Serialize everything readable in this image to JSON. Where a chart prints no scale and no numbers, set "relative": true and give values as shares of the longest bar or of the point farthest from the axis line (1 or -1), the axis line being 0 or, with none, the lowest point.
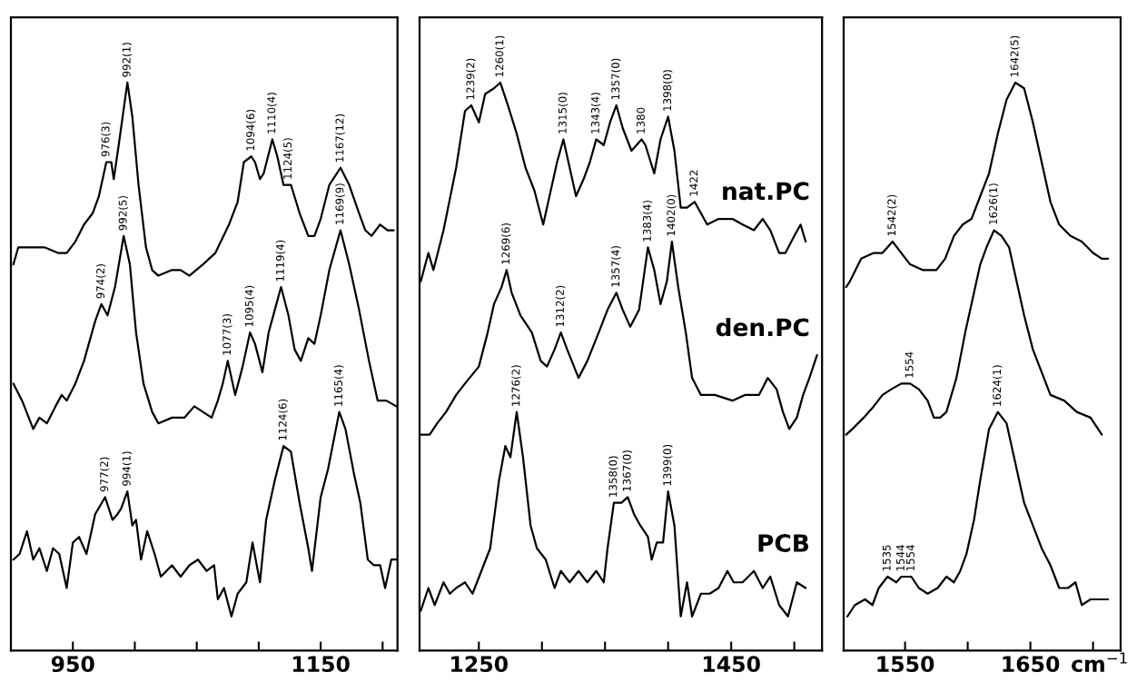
{
  "chart_data": [
    {
      "type": "line",
      "relative": true,
      "tick_labels": "x",
      "xlim": [
        900,
        1212
      ],
      "xticks": [
        950,
        {
          "value": 1000,
          "label": null
        },
        {
          "value": 1050,
          "label": null
        },
        {
          "value": 1100,
          "label": null
        },
        1150,
        {
          "value": 1200,
          "label": null
        }
      ],
      "series": [
        {
          "color": "#000000",
          "x": [
            902,
            906,
            916,
            927,
            938,
            945,
            952,
            959,
            966,
            971,
            977,
            981,
            983,
            987,
            994,
            998,
            1003,
            1009,
            1014,
            1019,
            1030,
            1037,
            1044,
            1055,
            1065,
            1076,
            1083,
            1088,
            1094,
            1097,
            1101,
            1104,
            1111,
            1115,
            1120,
            1126,
            1133,
            1140,
            1145,
            1150,
            1157,
            1166,
            1173,
            1181,
            1186,
            1191,
            1198,
            1204,
            1209
          ],
          "values": [
            0.68,
            0.71,
            0.71,
            0.71,
            0.7,
            0.7,
            0.72,
            0.75,
            0.77,
            0.8,
            0.86,
            0.86,
            0.83,
            0.89,
            1.0,
            0.94,
            0.82,
            0.71,
            0.67,
            0.66,
            0.67,
            0.67,
            0.66,
            0.68,
            0.7,
            0.75,
            0.79,
            0.86,
            0.87,
            0.86,
            0.83,
            0.84,
            0.9,
            0.87,
            0.82,
            0.82,
            0.77,
            0.73,
            0.73,
            0.76,
            0.82,
            0.85,
            0.82,
            0.77,
            0.74,
            0.73,
            0.75,
            0.74,
            0.74
          ]
        },
        {
          "color": "#000000",
          "x": [
            902,
            909,
            918,
            923,
            929,
            936,
            941,
            945,
            952,
            959,
            968,
            973,
            978,
            984,
            991,
            996,
            1001,
            1007,
            1014,
            1019,
            1030,
            1040,
            1048,
            1055,
            1062,
            1067,
            1071,
            1075,
            1081,
            1087,
            1093,
            1097,
            1103,
            1108,
            1113,
            1118,
            1124,
            1129,
            1134,
            1140,
            1145,
            1150,
            1157,
            1166,
            1173,
            1181,
            1189,
            1196,
            1203,
            1211
          ],
          "values": [
            0.47,
            0.44,
            0.39,
            0.41,
            0.4,
            0.43,
            0.45,
            0.44,
            0.47,
            0.51,
            0.58,
            0.61,
            0.59,
            0.64,
            0.73,
            0.68,
            0.56,
            0.47,
            0.42,
            0.4,
            0.41,
            0.41,
            0.43,
            0.42,
            0.41,
            0.44,
            0.47,
            0.51,
            0.45,
            0.5,
            0.56,
            0.54,
            0.49,
            0.56,
            0.6,
            0.64,
            0.59,
            0.53,
            0.51,
            0.55,
            0.54,
            0.59,
            0.67,
            0.74,
            0.68,
            0.6,
            0.51,
            0.44,
            0.44,
            0.43
          ]
        },
        {
          "color": "#000000",
          "x": [
            902,
            907,
            913,
            918,
            923,
            929,
            934,
            939,
            945,
            950,
            955,
            961,
            968,
            976,
            982,
            986,
            989,
            994,
            998,
            1001,
            1005,
            1010,
            1016,
            1021,
            1030,
            1037,
            1044,
            1051,
            1058,
            1064,
            1067,
            1072,
            1078,
            1083,
            1090,
            1095,
            1101,
            1106,
            1113,
            1120,
            1126,
            1133,
            1140,
            1143,
            1150,
            1156,
            1165,
            1170,
            1177,
            1182,
            1188,
            1193,
            1198,
            1202,
            1207,
            1211
          ],
          "values": [
            0.16,
            0.17,
            0.21,
            0.16,
            0.18,
            0.14,
            0.18,
            0.17,
            0.11,
            0.19,
            0.2,
            0.17,
            0.24,
            0.27,
            0.23,
            0.24,
            0.25,
            0.28,
            0.22,
            0.23,
            0.16,
            0.21,
            0.17,
            0.13,
            0.15,
            0.13,
            0.15,
            0.16,
            0.14,
            0.15,
            0.09,
            0.11,
            0.06,
            0.1,
            0.12,
            0.19,
            0.12,
            0.23,
            0.3,
            0.36,
            0.35,
            0.26,
            0.18,
            0.14,
            0.27,
            0.32,
            0.42,
            0.39,
            0.31,
            0.26,
            0.16,
            0.15,
            0.15,
            0.11,
            0.16,
            0.16
          ]
        }
      ],
      "annotations": [
        {
          "text": "976(3)",
          "x": 977,
          "y": 0.86
        },
        {
          "text": "992(1)",
          "x": 994,
          "y": 1.0
        },
        {
          "text": "1094(6)",
          "x": 1094,
          "y": 0.87
        },
        {
          "text": "1110(4)",
          "x": 1111,
          "y": 0.9
        },
        {
          "text": "1124(5)",
          "x": 1124,
          "y": 0.82
        },
        {
          "text": "1167(12)",
          "x": 1166,
          "y": 0.85
        },
        {
          "text": "974(2)",
          "x": 973,
          "y": 0.61
        },
        {
          "text": "992(5)",
          "x": 991,
          "y": 0.73
        },
        {
          "text": "1077(3)",
          "x": 1075,
          "y": 0.51
        },
        {
          "text": "1095(4)",
          "x": 1093,
          "y": 0.56
        },
        {
          "text": "1119(4)",
          "x": 1118,
          "y": 0.64
        },
        {
          "text": "1169(9)",
          "x": 1166,
          "y": 0.74
        },
        {
          "text": "977(2)",
          "x": 976,
          "y": 0.27
        },
        {
          "text": "994(1)",
          "x": 994,
          "y": 0.28
        },
        {
          "text": "1124(6)",
          "x": 1120,
          "y": 0.36
        },
        {
          "text": "1165(4)",
          "x": 1165,
          "y": 0.42
        }
      ]
    },
    {
      "type": "line",
      "relative": true,
      "tick_labels": "x",
      "xlim": [
        1203,
        1522
      ],
      "xticks": [
        1250,
        {
          "value": 1300,
          "label": null
        },
        {
          "value": 1350,
          "label": null
        },
        {
          "value": 1400,
          "label": null
        },
        1450,
        {
          "value": 1500,
          "label": null
        }
      ],
      "series": [
        {
          "name": "nat.PC",
          "color": "#000000",
          "x": [
            1204,
            1210,
            1214,
            1222,
            1232,
            1239,
            1244,
            1250,
            1255,
            1262,
            1267,
            1273,
            1280,
            1287,
            1294,
            1301,
            1306,
            1312,
            1317,
            1322,
            1327,
            1333,
            1338,
            1343,
            1349,
            1354,
            1359,
            1364,
            1371,
            1379,
            1382,
            1389,
            1394,
            1400,
            1405,
            1410,
            1415,
            1421,
            1426,
            1431,
            1440,
            1451,
            1459,
            1468,
            1475,
            1481,
            1488,
            1493,
            1500,
            1505,
            1509
          ],
          "values": [
            0.65,
            0.7,
            0.67,
            0.74,
            0.85,
            0.95,
            0.96,
            0.93,
            0.98,
            0.99,
            1.0,
            0.96,
            0.91,
            0.85,
            0.81,
            0.75,
            0.8,
            0.86,
            0.9,
            0.85,
            0.8,
            0.83,
            0.86,
            0.9,
            0.89,
            0.93,
            0.96,
            0.92,
            0.88,
            0.9,
            0.89,
            0.84,
            0.9,
            0.94,
            0.88,
            0.78,
            0.78,
            0.79,
            0.77,
            0.75,
            0.76,
            0.76,
            0.75,
            0.74,
            0.76,
            0.74,
            0.7,
            0.7,
            0.73,
            0.75,
            0.72
          ]
        },
        {
          "name": "den.PC",
          "color": "#000000",
          "x": [
            1204,
            1211,
            1217,
            1224,
            1232,
            1239,
            1250,
            1257,
            1262,
            1268,
            1272,
            1276,
            1283,
            1292,
            1299,
            1304,
            1310,
            1315,
            1320,
            1329,
            1336,
            1345,
            1352,
            1359,
            1364,
            1370,
            1377,
            1384,
            1389,
            1394,
            1399,
            1403,
            1408,
            1414,
            1419,
            1426,
            1437,
            1451,
            1461,
            1472,
            1479,
            1486,
            1491,
            1496,
            1502,
            1507,
            1512,
            1518
          ],
          "values": [
            0.38,
            0.38,
            0.4,
            0.42,
            0.45,
            0.47,
            0.5,
            0.56,
            0.61,
            0.64,
            0.67,
            0.63,
            0.59,
            0.56,
            0.51,
            0.5,
            0.53,
            0.56,
            0.53,
            0.48,
            0.51,
            0.56,
            0.6,
            0.63,
            0.6,
            0.57,
            0.6,
            0.71,
            0.67,
            0.61,
            0.65,
            0.72,
            0.64,
            0.56,
            0.48,
            0.45,
            0.45,
            0.44,
            0.45,
            0.45,
            0.48,
            0.46,
            0.42,
            0.39,
            0.41,
            0.45,
            0.48,
            0.52
          ]
        },
        {
          "name": "PCB",
          "color": "#000000",
          "x": [
            1204,
            1210,
            1215,
            1222,
            1227,
            1232,
            1239,
            1245,
            1252,
            1259,
            1266,
            1271,
            1275,
            1280,
            1285,
            1291,
            1296,
            1303,
            1310,
            1315,
            1322,
            1329,
            1336,
            1343,
            1349,
            1352,
            1357,
            1363,
            1368,
            1373,
            1378,
            1384,
            1387,
            1391,
            1396,
            1400,
            1405,
            1410,
            1415,
            1419,
            1426,
            1433,
            1440,
            1447,
            1452,
            1459,
            1468,
            1475,
            1481,
            1488,
            1495,
            1502,
            1509
          ],
          "values": [
            0.07,
            0.11,
            0.08,
            0.12,
            0.1,
            0.11,
            0.12,
            0.1,
            0.14,
            0.18,
            0.3,
            0.36,
            0.34,
            0.42,
            0.34,
            0.22,
            0.18,
            0.16,
            0.11,
            0.14,
            0.12,
            0.14,
            0.12,
            0.14,
            0.12,
            0.18,
            0.26,
            0.26,
            0.27,
            0.24,
            0.22,
            0.2,
            0.16,
            0.19,
            0.19,
            0.28,
            0.22,
            0.06,
            0.12,
            0.06,
            0.1,
            0.1,
            0.11,
            0.14,
            0.12,
            0.12,
            0.14,
            0.11,
            0.13,
            0.08,
            0.06,
            0.12,
            0.11
          ]
        }
      ],
      "annotations": [
        {
          "text": "1239(2)",
          "x": 1244,
          "y": 0.96
        },
        {
          "text": "1260(1)",
          "x": 1267,
          "y": 1.0
        },
        {
          "text": "1315(0)",
          "x": 1317,
          "y": 0.9
        },
        {
          "text": "1343(4)",
          "x": 1343,
          "y": 0.9
        },
        {
          "text": "1357(0)",
          "x": 1359,
          "y": 0.96
        },
        {
          "text": "1380",
          "x": 1379,
          "y": 0.9
        },
        {
          "text": "1398(0)",
          "x": 1400,
          "y": 0.94
        },
        {
          "text": "1422",
          "x": 1421,
          "y": 0.79
        },
        {
          "text": "1269(6)",
          "x": 1272,
          "y": 0.67
        },
        {
          "text": "1312(2)",
          "x": 1315,
          "y": 0.56
        },
        {
          "text": "1357(4)",
          "x": 1359,
          "y": 0.63
        },
        {
          "text": "1383(4)",
          "x": 1384,
          "y": 0.71
        },
        {
          "text": "1402(0)",
          "x": 1403,
          "y": 0.72
        },
        {
          "text": "1276(2)",
          "x": 1280,
          "y": 0.42
        },
        {
          "text": "1358(0)",
          "x": 1357,
          "y": 0.26
        },
        {
          "text": "1367(0)",
          "x": 1368,
          "y": 0.27
        },
        {
          "text": "1399(0)",
          "x": 1400,
          "y": 0.28
        }
      ]
    },
    {
      "type": "line",
      "relative": true,
      "tick_labels": "x",
      "xlim": [
        1501,
        1722
      ],
      "xlabel": "cm$^{−1}$",
      "xticks": [
        1550,
        {
          "value": 1600,
          "label": null
        },
        1650,
        {
          "value": 1700,
          "label": null
        }
      ],
      "series": [
        {
          "color": "#000000",
          "x": [
            1503,
            1506,
            1515,
            1525,
            1532,
            1540,
            1547,
            1554,
            1564,
            1575,
            1582,
            1589,
            1596,
            1603,
            1610,
            1617,
            1624,
            1631,
            1638,
            1645,
            1652,
            1659,
            1666,
            1673,
            1682,
            1691,
            1700,
            1707,
            1712
          ],
          "values": [
            0.64,
            0.65,
            0.69,
            0.7,
            0.7,
            0.72,
            0.7,
            0.68,
            0.67,
            0.67,
            0.69,
            0.73,
            0.75,
            0.76,
            0.8,
            0.84,
            0.91,
            0.97,
            1.0,
            0.99,
            0.93,
            0.86,
            0.79,
            0.75,
            0.73,
            0.72,
            0.7,
            0.69,
            0.69
          ]
        },
        {
          "color": "#000000",
          "x": [
            1503,
            1508,
            1517,
            1525,
            1532,
            1539,
            1547,
            1554,
            1561,
            1568,
            1573,
            1578,
            1583,
            1591,
            1598,
            1605,
            1610,
            1615,
            1621,
            1627,
            1633,
            1638,
            1645,
            1652,
            1659,
            1666,
            1677,
            1687,
            1698,
            1707
          ],
          "values": [
            0.38,
            0.39,
            0.41,
            0.43,
            0.45,
            0.46,
            0.47,
            0.47,
            0.46,
            0.44,
            0.41,
            0.41,
            0.42,
            0.48,
            0.56,
            0.63,
            0.68,
            0.71,
            0.74,
            0.73,
            0.71,
            0.66,
            0.59,
            0.53,
            0.49,
            0.45,
            0.44,
            0.42,
            0.41,
            0.38
          ]
        },
        {
          "color": "#000000",
          "x": [
            1504,
            1510,
            1518,
            1524,
            1529,
            1536,
            1543,
            1547,
            1552,
            1555,
            1561,
            1568,
            1576,
            1583,
            1589,
            1594,
            1599,
            1605,
            1610,
            1617,
            1624,
            1631,
            1638,
            1645,
            1652,
            1659,
            1666,
            1673,
            1680,
            1686,
            1691,
            1698,
            1705,
            1712
          ],
          "values": [
            0.06,
            0.08,
            0.09,
            0.08,
            0.11,
            0.13,
            0.12,
            0.13,
            0.13,
            0.13,
            0.11,
            0.1,
            0.11,
            0.13,
            0.12,
            0.14,
            0.17,
            0.23,
            0.3,
            0.39,
            0.42,
            0.4,
            0.33,
            0.26,
            0.22,
            0.18,
            0.15,
            0.11,
            0.11,
            0.12,
            0.08,
            0.09,
            0.09,
            0.09
          ]
        }
      ],
      "annotations": [
        {
          "text": "1542(2)",
          "x": 1540,
          "y": 0.72
        },
        {
          "text": "1642(5)",
          "x": 1638,
          "y": 1.0
        },
        {
          "text": "1554",
          "x": 1554,
          "y": 0.47
        },
        {
          "text": "1626(1)",
          "x": 1621,
          "y": 0.74
        },
        {
          "text": "1535",
          "x": 1536,
          "y": 0.13
        },
        {
          "text": "1544",
          "x": 1547,
          "y": 0.13
        },
        {
          "text": "1554",
          "x": 1555,
          "y": 0.13
        },
        {
          "text": "1624(1)",
          "x": 1624,
          "y": 0.42
        }
      ]
    }
  ]
}
